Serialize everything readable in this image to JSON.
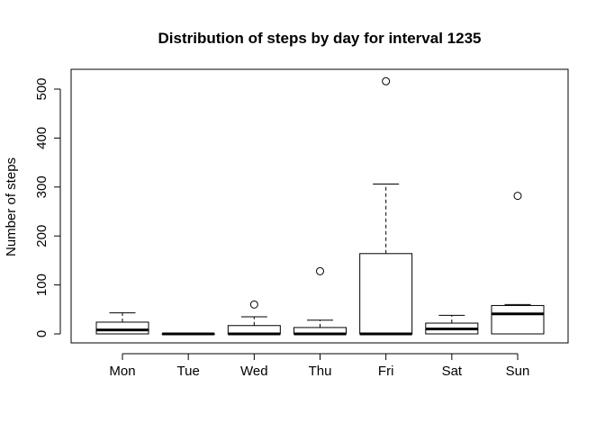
{
  "chart_data": {
    "type": "boxplot",
    "title": "Distribution of steps by day for interval 1235",
    "xlabel": "",
    "ylabel": "Number of steps",
    "categories": [
      "Mon",
      "Tue",
      "Wed",
      "Thu",
      "Fri",
      "Sat",
      "Sun"
    ],
    "ylim": [
      -20,
      535
    ],
    "yticks": [
      0,
      100,
      200,
      300,
      400,
      500
    ],
    "grid": false,
    "legend": "none",
    "boxes": [
      {
        "category": "Mon",
        "whisker_low": 0,
        "q1": 0,
        "median": 8,
        "q3": 24,
        "whisker_high": 43,
        "outliers": []
      },
      {
        "category": "Tue",
        "whisker_low": 0,
        "q1": 0,
        "median": 0,
        "q3": 0,
        "whisker_high": 0,
        "outliers": []
      },
      {
        "category": "Wed",
        "whisker_low": 0,
        "q1": 0,
        "median": 0,
        "q3": 17,
        "whisker_high": 35,
        "outliers": [
          60
        ]
      },
      {
        "category": "Thu",
        "whisker_low": 0,
        "q1": 0,
        "median": 0,
        "q3": 13,
        "whisker_high": 28,
        "outliers": [
          128
        ]
      },
      {
        "category": "Fri",
        "whisker_low": 0,
        "q1": 0,
        "median": 0,
        "q3": 164,
        "whisker_high": 306,
        "outliers": [
          516
        ]
      },
      {
        "category": "Sat",
        "whisker_low": 0,
        "q1": 0,
        "median": 10,
        "q3": 22,
        "whisker_high": 38,
        "outliers": []
      },
      {
        "category": "Sun",
        "whisker_low": 0,
        "q1": 0,
        "median": 41,
        "q3": 58,
        "whisker_high": 60,
        "outliers": [
          282
        ]
      }
    ]
  }
}
